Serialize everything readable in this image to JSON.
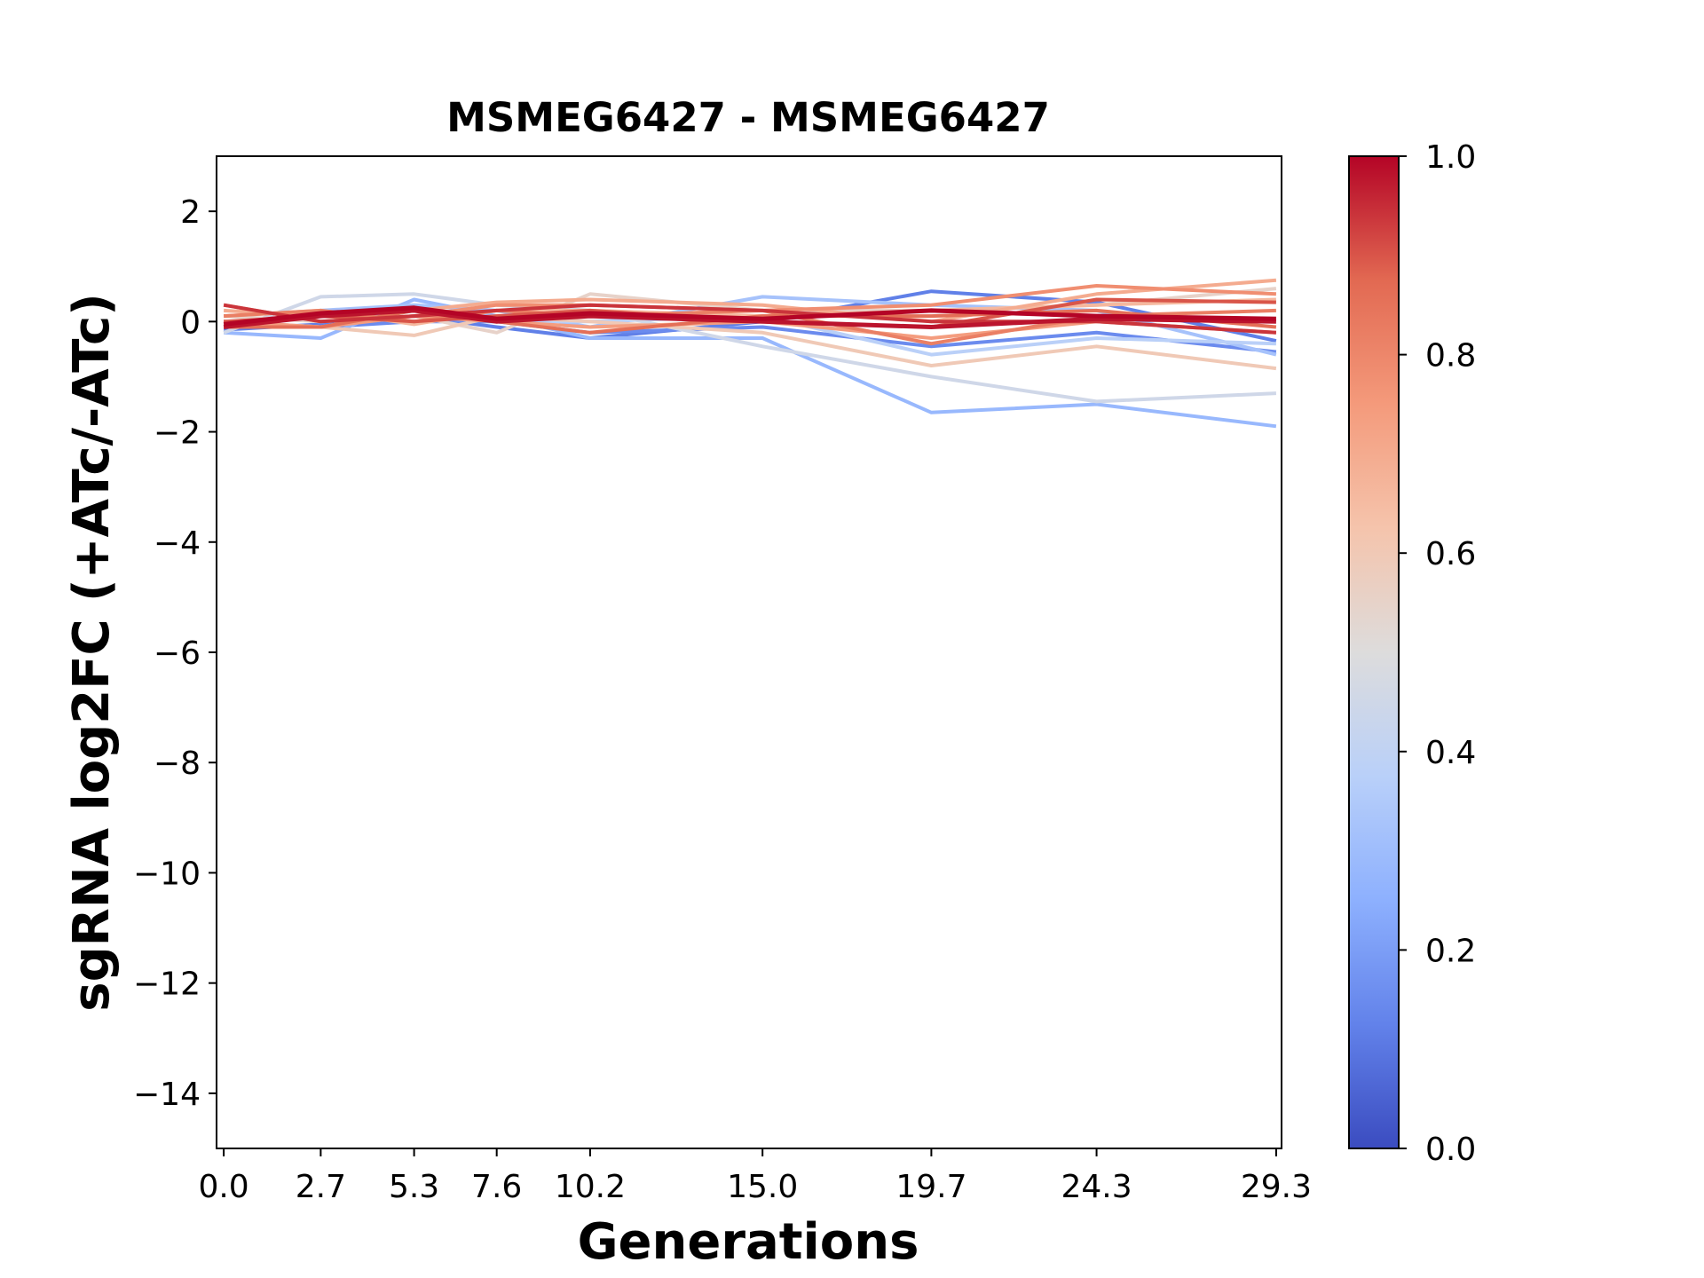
{
  "chart_data": {
    "type": "line",
    "title": "MSMEG6427 - MSMEG6427",
    "xlabel": "Generations",
    "ylabel": "sgRNA log2FC (+ATc/-ATc)",
    "x": [
      0.0,
      2.7,
      5.3,
      7.6,
      10.2,
      15.0,
      19.7,
      24.3,
      29.3
    ],
    "x_tick_labels": [
      "0.0",
      "2.7",
      "5.3",
      "7.6",
      "10.2",
      "15.0",
      "19.7",
      "24.3",
      "29.3"
    ],
    "xlim": [
      -0.2,
      29.45
    ],
    "ylim": [
      -15,
      3
    ],
    "y_ticks": [
      2,
      0,
      -2,
      -4,
      -6,
      -8,
      -10,
      -12,
      -14
    ],
    "y_tick_labels": [
      "2",
      "0",
      "−2",
      "−4",
      "−6",
      "−8",
      "−10",
      "−12",
      "−14"
    ],
    "grid": false,
    "colormap": "coolwarm",
    "colorbar": {
      "range": [
        0.0,
        1.0
      ],
      "ticks": [
        0.0,
        0.2,
        0.4,
        0.6,
        0.8,
        1.0
      ],
      "tick_labels": [
        "0.0",
        "0.2",
        "0.4",
        "0.6",
        "0.8",
        "1.0"
      ],
      "stops": [
        "#3b4cc0",
        "#6282ea",
        "#8db0fe",
        "#b9d0f9",
        "#dddcdc",
        "#f5c4ac",
        "#f49a7b",
        "#e26952",
        "#b40426"
      ]
    },
    "series": [
      {
        "c": 0.12,
        "values": [
          -0.15,
          -0.05,
          0.1,
          -0.1,
          -0.3,
          0.0,
          0.55,
          0.35,
          -0.35
        ]
      },
      {
        "c": 0.15,
        "values": [
          -0.1,
          -0.1,
          0.0,
          0.0,
          -0.2,
          -0.1,
          -0.45,
          -0.2,
          -0.55
        ]
      },
      {
        "c": 0.28,
        "values": [
          -0.2,
          -0.3,
          0.4,
          0.1,
          -0.3,
          -0.3,
          -1.65,
          -1.5,
          -1.9
        ]
      },
      {
        "c": 0.32,
        "values": [
          -0.1,
          0.2,
          0.3,
          0.2,
          -0.1,
          0.45,
          0.3,
          0.2,
          -0.6
        ]
      },
      {
        "c": 0.38,
        "values": [
          0.0,
          -0.1,
          0.2,
          0.0,
          0.0,
          0.1,
          -0.6,
          -0.3,
          -0.4
        ]
      },
      {
        "c": 0.45,
        "values": [
          -0.2,
          0.45,
          0.5,
          0.3,
          0.2,
          -0.45,
          -1.0,
          -1.45,
          -1.3
        ]
      },
      {
        "c": 0.55,
        "values": [
          0.1,
          0.0,
          0.1,
          -0.2,
          0.5,
          0.2,
          0.2,
          0.3,
          0.6
        ]
      },
      {
        "c": 0.6,
        "values": [
          0.0,
          -0.1,
          -0.25,
          0.1,
          0.0,
          -0.2,
          -0.8,
          -0.45,
          -0.85
        ]
      },
      {
        "c": 0.66,
        "values": [
          0.1,
          0.2,
          -0.05,
          0.2,
          0.2,
          0.1,
          0.2,
          0.3,
          0.4
        ]
      },
      {
        "c": 0.7,
        "values": [
          0.2,
          0.1,
          0.2,
          0.35,
          0.4,
          0.3,
          0.0,
          0.5,
          0.75
        ]
      },
      {
        "c": 0.74,
        "values": [
          0.0,
          -0.1,
          0.1,
          0.0,
          -0.1,
          0.0,
          -0.3,
          0.0,
          -0.2
        ]
      },
      {
        "c": 0.78,
        "values": [
          0.3,
          0.0,
          0.1,
          0.3,
          0.3,
          0.2,
          0.3,
          0.65,
          0.5
        ]
      },
      {
        "c": 0.82,
        "values": [
          0.1,
          0.2,
          0.0,
          0.2,
          0.1,
          0.2,
          -0.4,
          0.1,
          0.2
        ]
      },
      {
        "c": 0.86,
        "values": [
          -0.1,
          -0.1,
          0.2,
          0.0,
          -0.2,
          0.1,
          0.1,
          0.2,
          -0.1
        ]
      },
      {
        "c": 0.9,
        "values": [
          0.0,
          0.1,
          0.0,
          0.1,
          0.2,
          0.0,
          -0.1,
          0.4,
          0.35
        ]
      },
      {
        "c": 0.94,
        "values": [
          0.3,
          0.0,
          0.1,
          0.2,
          0.3,
          0.2,
          0.0,
          0.0,
          -0.2
        ]
      },
      {
        "c": 0.98,
        "values": [
          -0.1,
          0.1,
          0.2,
          0.0,
          0.1,
          0.0,
          -0.1,
          0.05,
          0.0
        ]
      },
      {
        "c": 1.0,
        "values": [
          -0.05,
          0.15,
          0.25,
          0.05,
          0.15,
          0.05,
          0.2,
          0.1,
          0.05
        ]
      }
    ]
  }
}
